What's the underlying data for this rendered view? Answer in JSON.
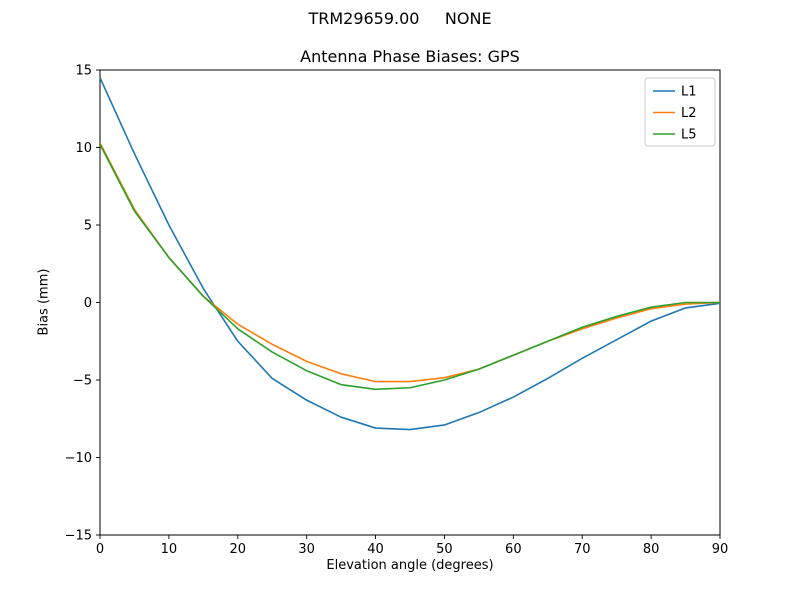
{
  "chart_data": {
    "type": "line",
    "suptitle": "TRM29659.00     NONE",
    "title": "Antenna Phase Biases: GPS",
    "xlabel": "Elevation angle (degrees)",
    "ylabel": "Bias (mm)",
    "xlim": [
      0,
      90
    ],
    "ylim": [
      -15,
      15
    ],
    "xticks": [
      0,
      10,
      20,
      30,
      40,
      50,
      60,
      70,
      80,
      90
    ],
    "yticks": [
      -15,
      -10,
      -5,
      0,
      5,
      10,
      15
    ],
    "grid": false,
    "legend_position": "upper right",
    "x": [
      0,
      5,
      10,
      15,
      20,
      25,
      30,
      35,
      40,
      45,
      50,
      55,
      60,
      65,
      70,
      75,
      80,
      85,
      90
    ],
    "series": [
      {
        "name": "L1",
        "color": "#1f77b4",
        "values": [
          14.5,
          9.6,
          5.0,
          0.9,
          -2.5,
          -4.9,
          -6.3,
          -7.4,
          -8.1,
          -8.2,
          -7.9,
          -7.1,
          -6.1,
          -4.9,
          -3.6,
          -2.4,
          -1.2,
          -0.35,
          -0.05
        ]
      },
      {
        "name": "L2",
        "color": "#ff7f0e",
        "values": [
          10.3,
          6.0,
          2.9,
          0.4,
          -1.4,
          -2.7,
          -3.8,
          -4.6,
          -5.1,
          -5.1,
          -4.85,
          -4.3,
          -3.4,
          -2.5,
          -1.7,
          -1.0,
          -0.4,
          -0.1,
          0.0
        ]
      },
      {
        "name": "L5",
        "color": "#2ca02c",
        "values": [
          10.2,
          5.9,
          2.9,
          0.4,
          -1.7,
          -3.2,
          -4.4,
          -5.3,
          -5.6,
          -5.5,
          -5.0,
          -4.3,
          -3.4,
          -2.5,
          -1.6,
          -0.9,
          -0.3,
          0.0,
          0.0
        ]
      }
    ]
  }
}
